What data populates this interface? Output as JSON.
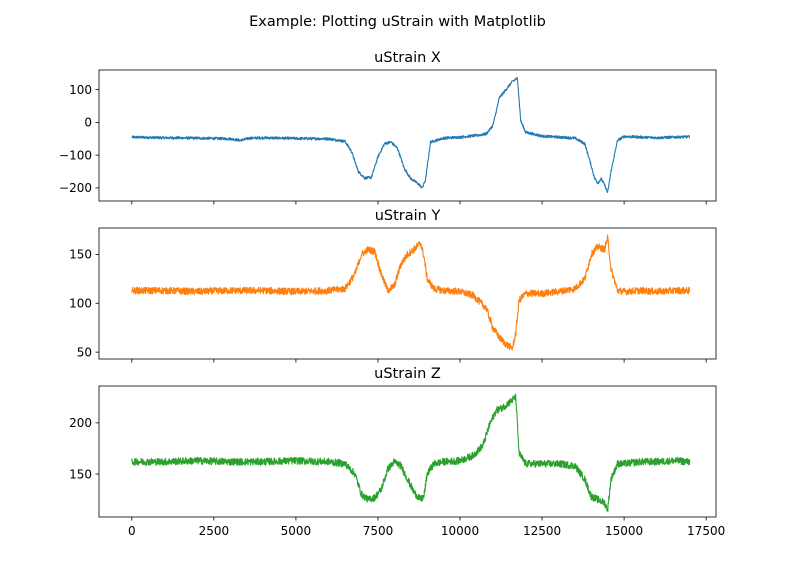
{
  "figure": {
    "suptitle": "Example: Plotting uStrain with Matplotlib"
  },
  "chart_data": [
    {
      "type": "line",
      "title": "uStrain X",
      "xlim": [
        -1000,
        17800
      ],
      "ylim": [
        -240,
        160
      ],
      "yticks": [
        100,
        0,
        -100,
        -200
      ],
      "ytick_labels": [
        "100",
        "0",
        "−100",
        "−200"
      ],
      "show_xtick_labels": false,
      "noise": 4,
      "series": [
        {
          "color": "#1f77b4",
          "x": [
            0,
            1000,
            2000,
            3000,
            3300,
            3600,
            4000,
            5000,
            6000,
            6500,
            6700,
            6900,
            7100,
            7300,
            7500,
            7700,
            7900,
            8100,
            8300,
            8500,
            8700,
            8850,
            8950,
            9100,
            9500,
            10000,
            10500,
            10800,
            11000,
            11200,
            11400,
            11600,
            11750,
            11850,
            12000,
            12500,
            13000,
            13500,
            13800,
            13950,
            14100,
            14200,
            14300,
            14400,
            14500,
            14600,
            14800,
            15000,
            15500,
            16000,
            16500,
            17000
          ],
          "values": [
            -45,
            -47,
            -48,
            -50,
            -55,
            -48,
            -47,
            -49,
            -50,
            -58,
            -90,
            -150,
            -170,
            -168,
            -105,
            -65,
            -60,
            -80,
            -140,
            -172,
            -185,
            -200,
            -175,
            -60,
            -48,
            -45,
            -40,
            -35,
            -10,
            75,
            100,
            125,
            135,
            5,
            -30,
            -42,
            -45,
            -48,
            -65,
            -115,
            -170,
            -185,
            -172,
            -190,
            -215,
            -150,
            -55,
            -43,
            -45,
            -47,
            -45,
            -44
          ]
        }
      ]
    },
    {
      "type": "line",
      "title": "uStrain Y",
      "xlim": [
        -1000,
        17800
      ],
      "ylim": [
        43,
        177
      ],
      "yticks": [
        150,
        100,
        50
      ],
      "ytick_labels": [
        "150",
        "100",
        "50"
      ],
      "show_xtick_labels": false,
      "noise": 3.5,
      "series": [
        {
          "color": "#ff7f0e",
          "x": [
            0,
            1000,
            2000,
            3000,
            4000,
            5000,
            6000,
            6500,
            6800,
            7000,
            7200,
            7400,
            7600,
            7800,
            8000,
            8200,
            8400,
            8600,
            8800,
            8900,
            9000,
            9200,
            9500,
            10000,
            10400,
            10800,
            11000,
            11200,
            11400,
            11600,
            11700,
            11800,
            12000,
            12500,
            13000,
            13500,
            13800,
            14000,
            14200,
            14400,
            14500,
            14600,
            14800,
            15000,
            15500,
            16000,
            16500,
            17000
          ],
          "values": [
            113,
            113,
            112,
            113,
            113,
            112,
            113,
            115,
            130,
            150,
            155,
            153,
            130,
            113,
            118,
            140,
            150,
            155,
            162,
            148,
            125,
            115,
            113,
            112,
            108,
            95,
            75,
            65,
            58,
            54,
            70,
            103,
            110,
            110,
            112,
            115,
            125,
            150,
            158,
            155,
            167,
            135,
            113,
            112,
            113,
            112,
            113,
            113
          ]
        }
      ]
    },
    {
      "type": "line",
      "title": "uStrain Z",
      "xlim": [
        -1000,
        17800
      ],
      "ylim": [
        108,
        236
      ],
      "yticks": [
        200,
        150
      ],
      "ytick_labels": [
        "200",
        "150"
      ],
      "xticks": [
        0,
        2500,
        5000,
        7500,
        10000,
        12500,
        15000,
        17500
      ],
      "xtick_labels": [
        "0",
        "2500",
        "5000",
        "7500",
        "10000",
        "12500",
        "15000",
        "17500"
      ],
      "show_xtick_labels": true,
      "noise": 3.5,
      "series": [
        {
          "color": "#2ca02c",
          "x": [
            0,
            1000,
            2000,
            3000,
            4000,
            5000,
            6000,
            6500,
            6800,
            7000,
            7200,
            7400,
            7600,
            7800,
            8000,
            8200,
            8400,
            8600,
            8800,
            8900,
            9000,
            9200,
            9500,
            10000,
            10400,
            10700,
            10900,
            11100,
            11300,
            11500,
            11700,
            11800,
            12000,
            12500,
            13000,
            13500,
            13800,
            14000,
            14200,
            14400,
            14500,
            14600,
            14800,
            15000,
            15500,
            16000,
            16500,
            17000
          ],
          "values": [
            162,
            162,
            163,
            162,
            162,
            163,
            162,
            160,
            150,
            130,
            125,
            127,
            135,
            155,
            162,
            158,
            145,
            132,
            125,
            128,
            150,
            160,
            162,
            163,
            168,
            178,
            198,
            212,
            215,
            220,
            225,
            170,
            160,
            160,
            160,
            158,
            145,
            128,
            125,
            122,
            115,
            145,
            160,
            160,
            162,
            162,
            163,
            162
          ]
        }
      ]
    }
  ]
}
